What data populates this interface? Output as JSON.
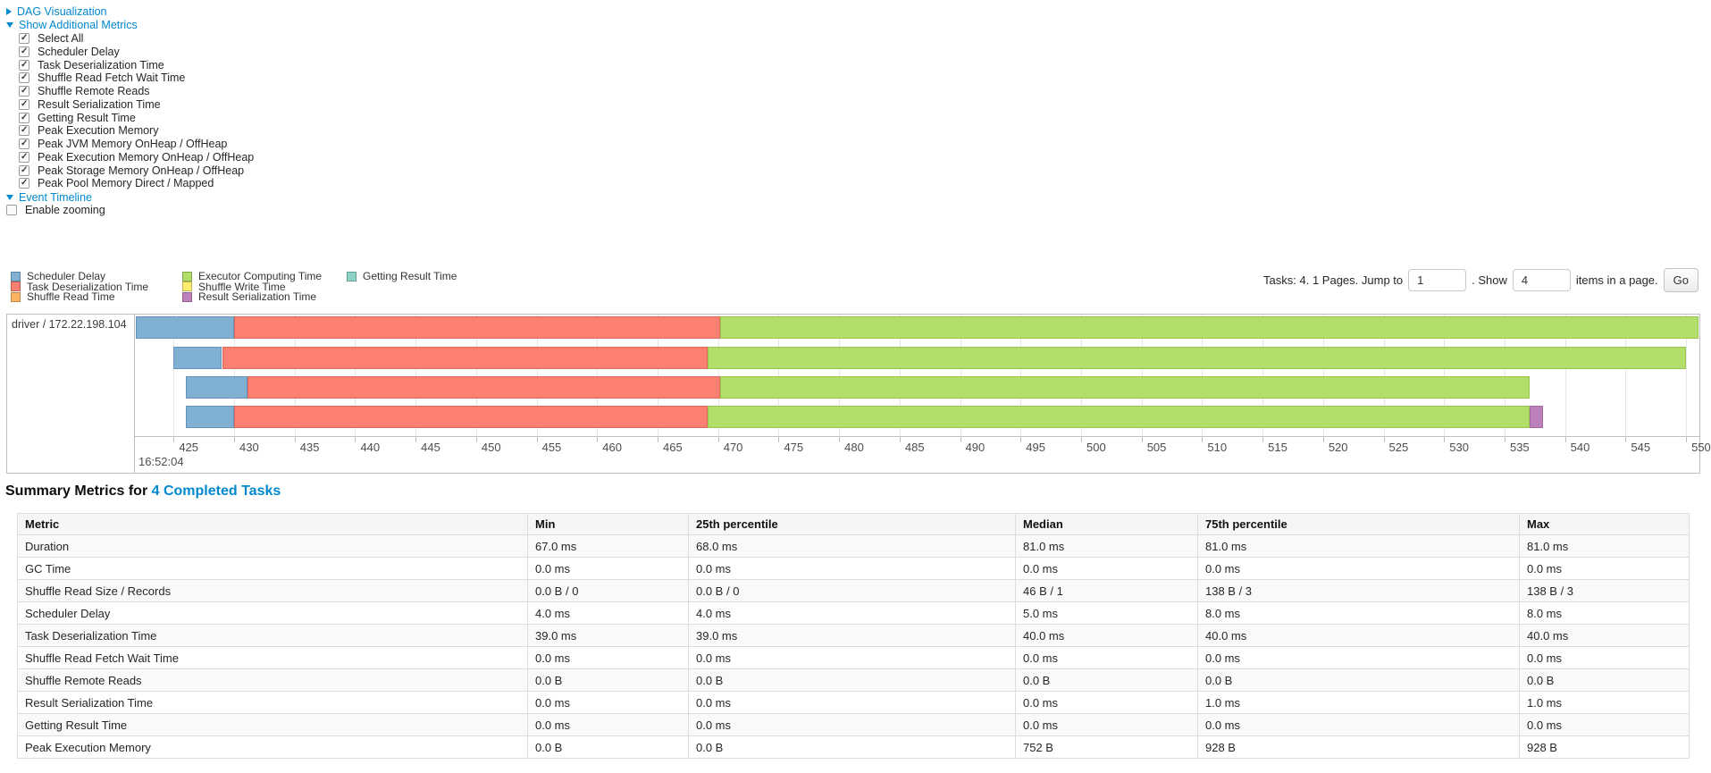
{
  "accent": {
    "link_color": "#0088cc"
  },
  "toggles": {
    "dag": {
      "label": "DAG Visualization",
      "state": "collapsed"
    },
    "metrics": {
      "label": "Show Additional Metrics",
      "state": "expanded"
    },
    "timeline": {
      "label": "Event Timeline",
      "state": "expanded"
    }
  },
  "metric_checkboxes": [
    {
      "label": "Select All",
      "checked": true
    },
    {
      "label": "Scheduler Delay",
      "checked": true
    },
    {
      "label": "Task Deserialization Time",
      "checked": true
    },
    {
      "label": "Shuffle Read Fetch Wait Time",
      "checked": true
    },
    {
      "label": "Shuffle Remote Reads",
      "checked": true
    },
    {
      "label": "Result Serialization Time",
      "checked": true
    },
    {
      "label": "Getting Result Time",
      "checked": true
    },
    {
      "label": "Peak Execution Memory",
      "checked": true
    },
    {
      "label": "Peak JVM Memory OnHeap / OffHeap",
      "checked": true
    },
    {
      "label": "Peak Execution Memory OnHeap / OffHeap",
      "checked": true
    },
    {
      "label": "Peak Storage Memory OnHeap / OffHeap",
      "checked": true
    },
    {
      "label": "Peak Pool Memory Direct / Mapped",
      "checked": true
    }
  ],
  "enable_zooming": {
    "label": "Enable zooming",
    "checked": false
  },
  "legend": {
    "columns": [
      [
        {
          "label": "Scheduler Delay",
          "color": "#80B1D3"
        },
        {
          "label": "Task Deserialization Time",
          "color": "#FB8072"
        },
        {
          "label": "Shuffle Read Time",
          "color": "#FDB462"
        }
      ],
      [
        {
          "label": "Executor Computing Time",
          "color": "#B3DE69"
        },
        {
          "label": "Shuffle Write Time",
          "color": "#FFED6F"
        },
        {
          "label": "Result Serialization Time",
          "color": "#BC80BD"
        }
      ],
      [
        {
          "label": "Getting Result Time",
          "color": "#8DD3C7"
        }
      ]
    ]
  },
  "pagination": {
    "prefix": "Tasks: 4. 1 Pages. Jump to",
    "jump_value": "1",
    "middle": ". Show",
    "show_value": "4",
    "suffix": "items in a page.",
    "go_label": "Go"
  },
  "chart_data": {
    "type": "timeline",
    "executor_label": "driver / 172.22.198.104",
    "axis": {
      "min": 421.8,
      "max": 551.1,
      "tick_start": 425,
      "tick_end": 550,
      "tick_step": 5,
      "major_label": "16:52:04",
      "grid": true
    },
    "colors": {
      "scheduler-delay": {
        "fill": "#80B1D3",
        "border": "#6593bb"
      },
      "task-deserialization": {
        "fill": "#FB8072",
        "border": "#de6a5c"
      },
      "executor-computing": {
        "fill": "#B3DE69",
        "border": "#99c64f"
      },
      "result-serialization": {
        "fill": "#BC80BD",
        "border": "#a369a4"
      }
    },
    "tasks": [
      {
        "segments": [
          {
            "type": "scheduler-delay",
            "start": 421.9,
            "end": 430.0
          },
          {
            "type": "task-deserialization",
            "start": 430.0,
            "end": 470.2
          },
          {
            "type": "executor-computing",
            "start": 470.2,
            "end": 551.0
          }
        ]
      },
      {
        "segments": [
          {
            "type": "scheduler-delay",
            "start": 425.0,
            "end": 429.0
          },
          {
            "type": "task-deserialization",
            "start": 429.0,
            "end": 469.1
          },
          {
            "type": "executor-computing",
            "start": 469.1,
            "end": 550.0
          }
        ]
      },
      {
        "segments": [
          {
            "type": "scheduler-delay",
            "start": 426.0,
            "end": 431.1
          },
          {
            "type": "task-deserialization",
            "start": 431.1,
            "end": 470.2
          },
          {
            "type": "executor-computing",
            "start": 470.2,
            "end": 537.1
          }
        ]
      },
      {
        "segments": [
          {
            "type": "scheduler-delay",
            "start": 426.0,
            "end": 430.0
          },
          {
            "type": "task-deserialization",
            "start": 430.0,
            "end": 469.1
          },
          {
            "type": "executor-computing",
            "start": 469.1,
            "end": 537.1
          },
          {
            "type": "result-serialization",
            "start": 537.1,
            "end": 538.2
          }
        ]
      }
    ]
  },
  "summary": {
    "title_prefix": "Summary Metrics for",
    "title_link": "4 Completed Tasks",
    "table": {
      "headers": [
        "Metric",
        "Min",
        "25th percentile",
        "Median",
        "75th percentile",
        "Max"
      ],
      "rows": [
        [
          "Duration",
          "67.0 ms",
          "68.0 ms",
          "81.0 ms",
          "81.0 ms",
          "81.0 ms"
        ],
        [
          "GC Time",
          "0.0 ms",
          "0.0 ms",
          "0.0 ms",
          "0.0 ms",
          "0.0 ms"
        ],
        [
          "Shuffle Read Size / Records",
          "0.0 B / 0",
          "0.0 B / 0",
          "46 B / 1",
          "138 B / 3",
          "138 B / 3"
        ],
        [
          "Scheduler Delay",
          "4.0 ms",
          "4.0 ms",
          "5.0 ms",
          "8.0 ms",
          "8.0 ms"
        ],
        [
          "Task Deserialization Time",
          "39.0 ms",
          "39.0 ms",
          "40.0 ms",
          "40.0 ms",
          "40.0 ms"
        ],
        [
          "Shuffle Read Fetch Wait Time",
          "0.0 ms",
          "0.0 ms",
          "0.0 ms",
          "0.0 ms",
          "0.0 ms"
        ],
        [
          "Shuffle Remote Reads",
          "0.0 B",
          "0.0 B",
          "0.0 B",
          "0.0 B",
          "0.0 B"
        ],
        [
          "Result Serialization Time",
          "0.0 ms",
          "0.0 ms",
          "0.0 ms",
          "1.0 ms",
          "1.0 ms"
        ],
        [
          "Getting Result Time",
          "0.0 ms",
          "0.0 ms",
          "0.0 ms",
          "0.0 ms",
          "0.0 ms"
        ],
        [
          "Peak Execution Memory",
          "0.0 B",
          "0.0 B",
          "752 B",
          "928 B",
          "928 B"
        ]
      ]
    }
  }
}
